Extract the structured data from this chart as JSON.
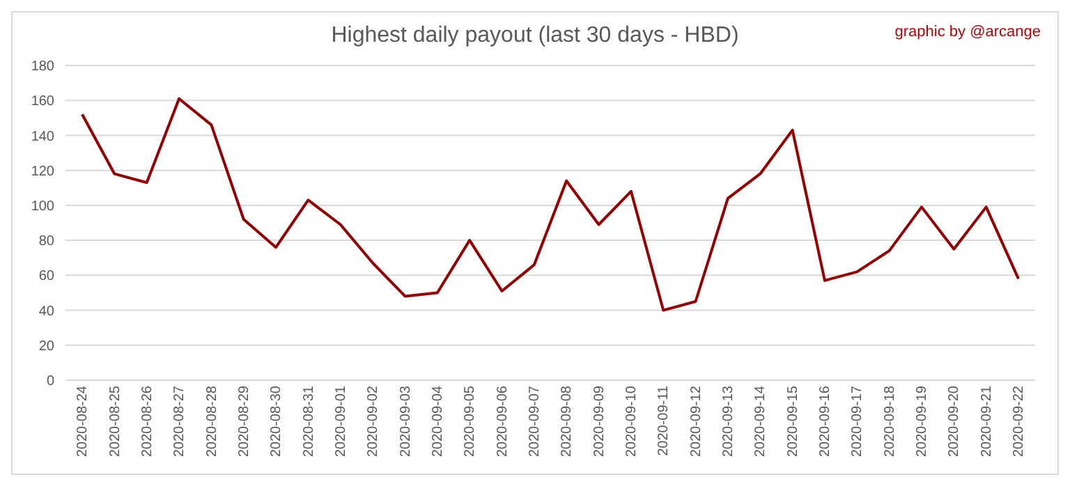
{
  "chart_data": {
    "type": "line",
    "title": "Highest daily payout (last 30 days - HBD)",
    "annotations": [
      "graphic by @arcange"
    ],
    "categories": [
      "2020-08-24",
      "2020-08-25",
      "2020-08-26",
      "2020-08-27",
      "2020-08-28",
      "2020-08-29",
      "2020-08-30",
      "2020-08-31",
      "2020-09-01",
      "2020-09-02",
      "2020-09-03",
      "2020-09-04",
      "2020-09-05",
      "2020-09-06",
      "2020-09-07",
      "2020-09-08",
      "2020-09-09",
      "2020-09-10",
      "2020-09-11",
      "2020-09-12",
      "2020-09-13",
      "2020-09-14",
      "2020-09-15",
      "2020-09-16",
      "2020-09-17",
      "2020-09-18",
      "2020-09-19",
      "2020-09-20",
      "2020-09-21",
      "2020-09-22"
    ],
    "series": [
      {
        "color": "#990000",
        "values": [
          152,
          118,
          113,
          161,
          146,
          92,
          76,
          103,
          89,
          67,
          48,
          50,
          80,
          51,
          66,
          114,
          89,
          108,
          40,
          45,
          104,
          118,
          143,
          57,
          62,
          74,
          99,
          75,
          99,
          58
        ]
      }
    ],
    "ylim": [
      0,
      180
    ],
    "yticks": [
      0,
      20,
      40,
      60,
      80,
      100,
      120,
      140,
      160,
      180
    ],
    "grid": "y",
    "legend": false,
    "marker": "none",
    "line_style": "solid"
  }
}
